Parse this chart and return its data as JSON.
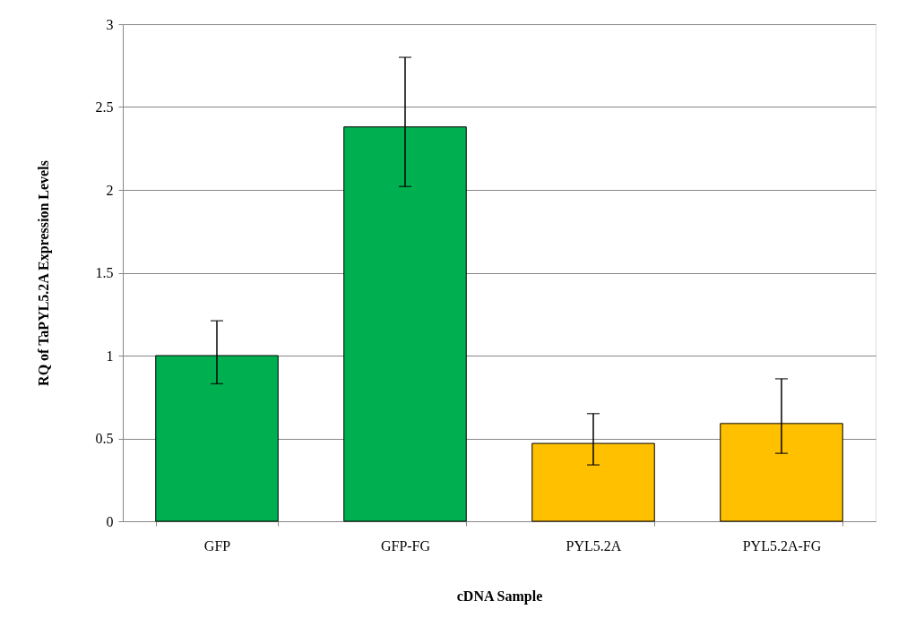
{
  "chart_data": {
    "type": "bar",
    "xlabel": "cDNA Sample",
    "ylabel": "RQ of TaPYL5.2A Expression Levels",
    "categories": [
      "GFP",
      "GFP-FG",
      "PYL5.2A",
      "PYL5.2A-FG"
    ],
    "values": [
      1.0,
      2.38,
      0.47,
      0.59
    ],
    "colors": [
      "#00b050",
      "#00b050",
      "#ffc000",
      "#ffc000"
    ],
    "errors": [
      [
        0.83,
        1.21
      ],
      [
        2.02,
        2.8
      ],
      [
        0.34,
        0.65
      ],
      [
        0.41,
        0.86
      ]
    ],
    "ylim": [
      0,
      3
    ],
    "yticks": [
      0,
      0.5,
      1,
      1.5,
      2,
      2.5,
      3
    ],
    "grid": "y"
  }
}
